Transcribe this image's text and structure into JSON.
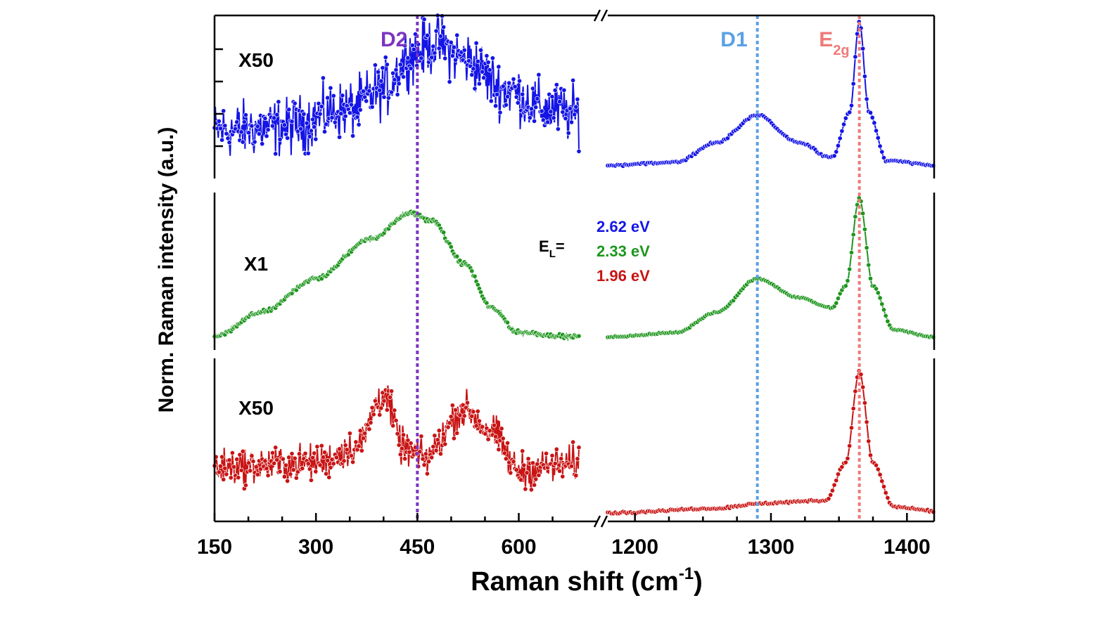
{
  "chart_data": {
    "type": "scatter",
    "xlabel": "Raman shift (cm",
    "xlabel_sup": "-1",
    "xlabel_close": ")",
    "ylabel": "Norm. Raman intensity (a.u.)",
    "axis_break": "//",
    "segments": [
      {
        "xlim": [
          150,
          690
        ],
        "ticks": [
          150,
          300,
          450,
          600
        ],
        "tick_labels": [
          "150",
          "300",
          "450",
          "600"
        ]
      },
      {
        "xlim": [
          1180,
          1420
        ],
        "ticks": [
          1200,
          1300,
          1400
        ],
        "tick_labels": [
          "1200",
          "1300",
          "1400"
        ]
      }
    ],
    "reference_lines": [
      {
        "name": "D2",
        "x": 450,
        "color": "#7b35c1",
        "label": "D2",
        "sub": ""
      },
      {
        "name": "D1",
        "x": 1290,
        "color": "#5aa0e6",
        "label": "D1",
        "sub": ""
      },
      {
        "name": "E2g",
        "x": 1365,
        "color": "#ef7a7a",
        "label": "E",
        "sub": "2g"
      }
    ],
    "legend": {
      "prefix": "E",
      "prefix_sub": "L",
      "prefix_suffix": "=",
      "entries": [
        {
          "label": "2.62 eV",
          "color": "#1414e6"
        },
        {
          "label": "2.33 eV",
          "color": "#1e961e"
        },
        {
          "label": "1.96 eV",
          "color": "#c81414"
        }
      ]
    },
    "series": [
      {
        "name": "2.62 eV",
        "color": "#1414e6",
        "multiplier_left": "X50",
        "noise": 0.55,
        "left": [
          [
            150,
            0.28
          ],
          [
            250,
            0.3
          ],
          [
            350,
            0.42
          ],
          [
            400,
            0.55
          ],
          [
            440,
            0.78
          ],
          [
            480,
            0.85
          ],
          [
            520,
            0.75
          ],
          [
            580,
            0.55
          ],
          [
            640,
            0.42
          ],
          [
            690,
            0.38
          ]
        ],
        "right": [
          [
            1180,
            0.05
          ],
          [
            1230,
            0.07
          ],
          [
            1260,
            0.2
          ],
          [
            1290,
            0.38
          ],
          [
            1320,
            0.2
          ],
          [
            1345,
            0.1
          ],
          [
            1358,
            0.4
          ],
          [
            1365,
            1.0
          ],
          [
            1372,
            0.4
          ],
          [
            1385,
            0.08
          ],
          [
            1420,
            0.05
          ]
        ]
      },
      {
        "name": "2.33 eV",
        "color": "#1e961e",
        "multiplier_left": "X1",
        "noise": 0.04,
        "left": [
          [
            150,
            0.05
          ],
          [
            220,
            0.22
          ],
          [
            300,
            0.45
          ],
          [
            380,
            0.72
          ],
          [
            440,
            0.9
          ],
          [
            470,
            0.85
          ],
          [
            520,
            0.55
          ],
          [
            560,
            0.25
          ],
          [
            600,
            0.08
          ],
          [
            690,
            0.05
          ]
        ],
        "right": [
          [
            1180,
            0.05
          ],
          [
            1230,
            0.08
          ],
          [
            1260,
            0.22
          ],
          [
            1290,
            0.45
          ],
          [
            1320,
            0.32
          ],
          [
            1345,
            0.25
          ],
          [
            1355,
            0.4
          ],
          [
            1365,
            1.0
          ],
          [
            1375,
            0.4
          ],
          [
            1390,
            0.1
          ],
          [
            1420,
            0.05
          ]
        ]
      },
      {
        "name": "1.96 eV",
        "color": "#c81414",
        "multiplier_left": "X50",
        "noise": 0.35,
        "left": [
          [
            150,
            0.32
          ],
          [
            300,
            0.35
          ],
          [
            360,
            0.45
          ],
          [
            400,
            0.8
          ],
          [
            430,
            0.45
          ],
          [
            460,
            0.38
          ],
          [
            520,
            0.7
          ],
          [
            560,
            0.55
          ],
          [
            600,
            0.3
          ],
          [
            690,
            0.35
          ]
        ],
        "right": [
          [
            1180,
            0.02
          ],
          [
            1260,
            0.05
          ],
          [
            1290,
            0.08
          ],
          [
            1340,
            0.1
          ],
          [
            1355,
            0.35
          ],
          [
            1365,
            0.95
          ],
          [
            1375,
            0.35
          ],
          [
            1390,
            0.06
          ],
          [
            1420,
            0.03
          ]
        ]
      }
    ]
  }
}
